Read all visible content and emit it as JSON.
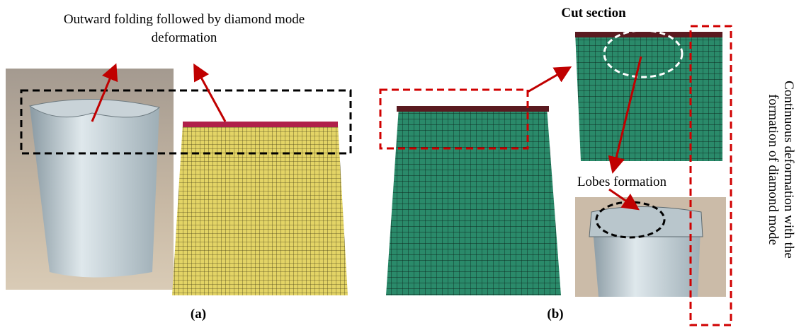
{
  "annotations": {
    "outward_folding": [
      "Outward folding followed by diamond mode",
      "deformation"
    ],
    "cut_section": "Cut section",
    "lobes_formation": "Lobes formation",
    "continuous_deformation": [
      "Continuous deformation with the",
      "formation of diamond mode"
    ]
  },
  "labels": {
    "a": "(a)",
    "b": "(b)"
  }
}
